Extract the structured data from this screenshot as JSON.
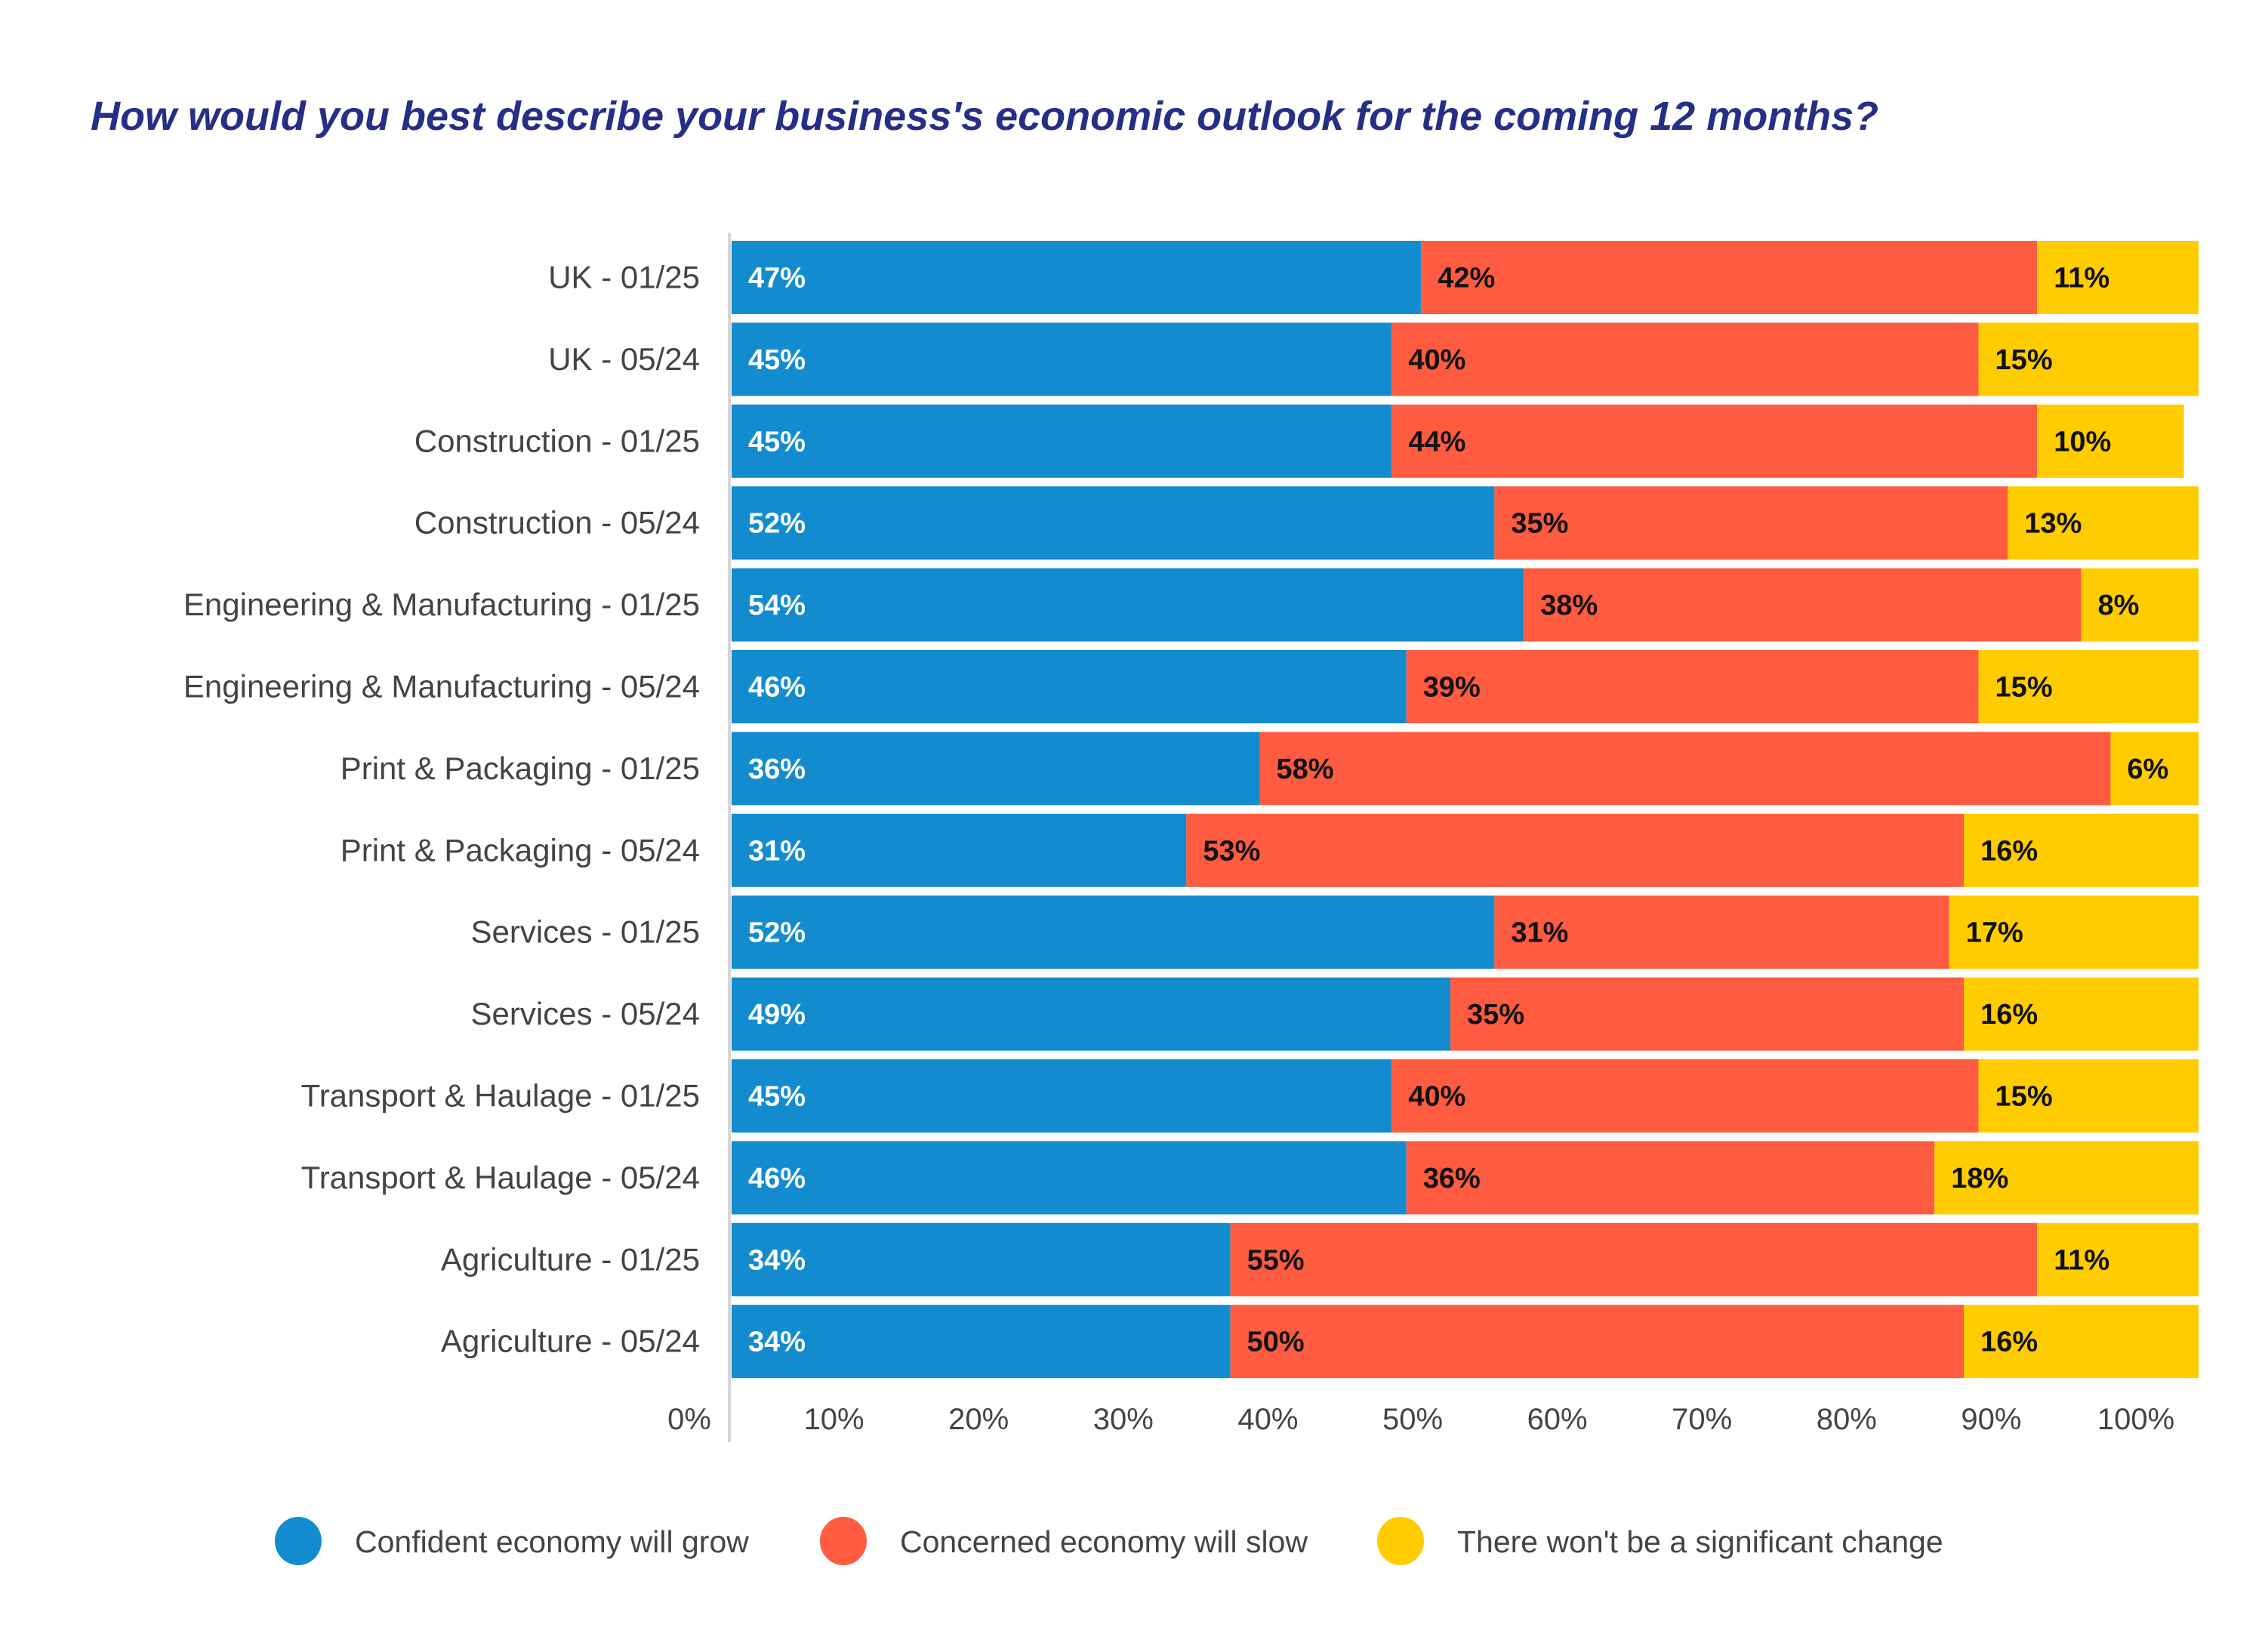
{
  "chart_data": {
    "type": "bar",
    "orientation": "horizontal",
    "stacked": "100%",
    "title": "How would you best describe your business's economic outlook for the coming 12 months?",
    "categories": [
      "UK - 01/25",
      "UK - 05/24",
      "Construction - 01/25",
      "Construction - 05/24",
      "Engineering & Manufacturing - 01/25",
      "Engineering & Manufacturing - 05/24",
      "Print & Packaging - 01/25",
      "Print & Packaging - 05/24",
      "Services - 01/25",
      "Services - 05/24",
      "Transport & Haulage - 01/25",
      "Transport & Haulage - 05/24",
      "Agriculture - 01/25",
      "Agriculture - 05/24"
    ],
    "series": [
      {
        "name": "Confident economy will grow",
        "color": "#128ccf",
        "label_color": "#ffffff",
        "values": [
          47,
          45,
          45,
          52,
          54,
          46,
          36,
          31,
          52,
          49,
          45,
          46,
          34,
          34
        ]
      },
      {
        "name": "Concerned economy will slow",
        "color": "#ff5b41",
        "label_color": "#111111",
        "values": [
          42,
          40,
          44,
          35,
          38,
          39,
          58,
          53,
          31,
          35,
          40,
          36,
          55,
          50
        ]
      },
      {
        "name": "There won't be a significant change",
        "color": "#ffcc00",
        "label_color": "#111111",
        "values": [
          11,
          15,
          10,
          13,
          8,
          15,
          6,
          16,
          17,
          16,
          15,
          18,
          11,
          16
        ]
      }
    ],
    "xlim": [
      0,
      100
    ],
    "xticks": [
      "0%",
      "10%",
      "20%",
      "30%",
      "40%",
      "50%",
      "60%",
      "70%",
      "80%",
      "90%",
      "100%"
    ],
    "grid": false,
    "legend_position": "bottom"
  }
}
